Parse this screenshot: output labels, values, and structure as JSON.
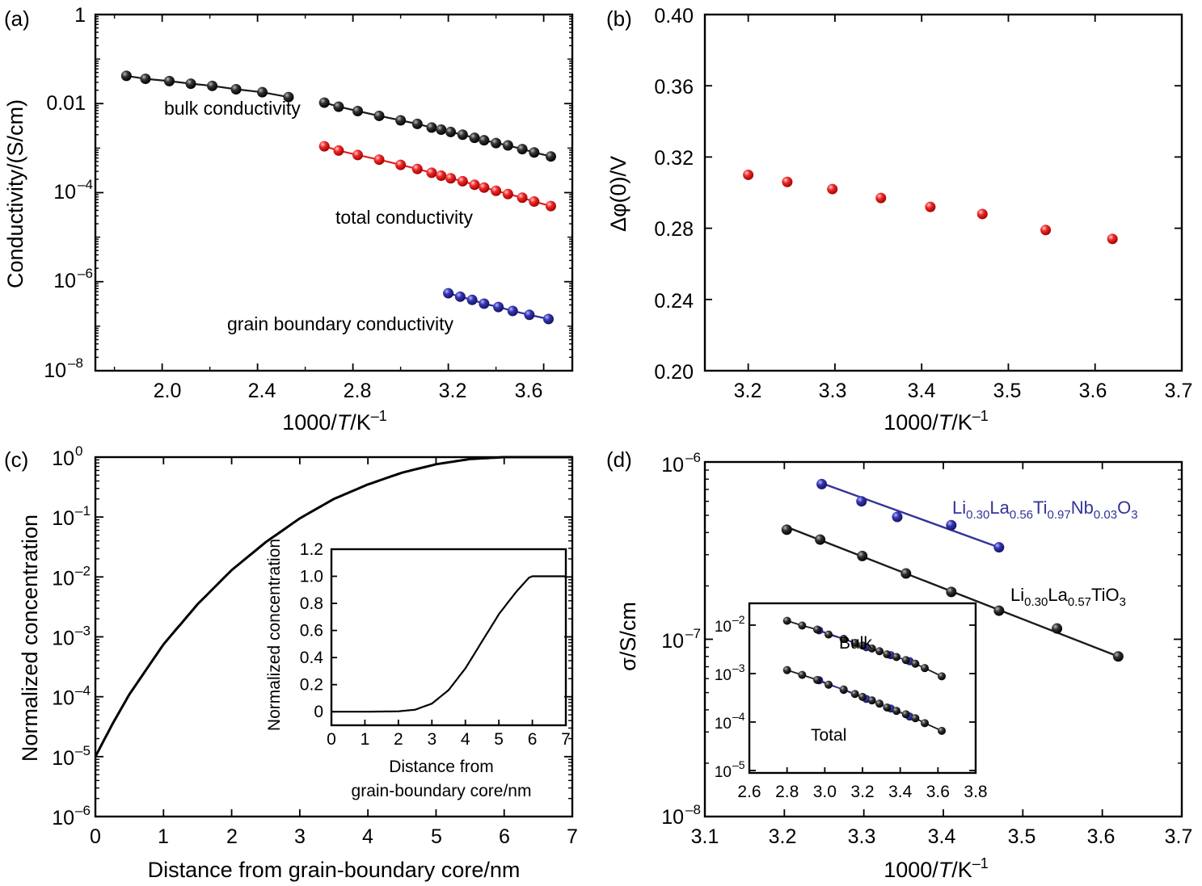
{
  "panels": [
    {
      "id": "a",
      "label": "(a)",
      "xlabel_pre": "1000/",
      "xlabel_ital": "T",
      "xlabel_post": "/K",
      "xlabel_sup": "–1",
      "ylabel": "Conductivity/(S/cm)",
      "x_ticks": [
        "2.0",
        "2.4",
        "2.8",
        "3.2",
        "3.6"
      ],
      "y_ticks": [
        {
          "base": "1",
          "exp": ""
        },
        {
          "base": "0.01",
          "exp": ""
        },
        {
          "base": "10",
          "exp": "–4"
        },
        {
          "base": "10",
          "exp": "–6"
        },
        {
          "base": "10",
          "exp": "–8"
        }
      ],
      "annotations": [
        "bulk conductivity",
        "total conductivity",
        "grain boundary conductivity"
      ]
    },
    {
      "id": "b",
      "label": "(b)",
      "xlabel_pre": "1000/",
      "xlabel_ital": "T",
      "xlabel_post": "/K",
      "xlabel_sup": "–1",
      "ylabel": "Δφ(0)/V",
      "x_ticks": [
        "3.2",
        "3.3",
        "3.4",
        "3.5",
        "3.6",
        "3.7"
      ],
      "y_ticks": [
        "0.20",
        "0.24",
        "0.28",
        "0.32",
        "0.36",
        "0.40"
      ]
    },
    {
      "id": "c",
      "label": "(c)",
      "xlabel": "Distance from grain-boundary core/nm",
      "ylabel": "Normalized concentration",
      "x_ticks": [
        "0",
        "1",
        "2",
        "3",
        "4",
        "5",
        "6",
        "7"
      ],
      "y_ticks": [
        {
          "base": "10",
          "exp": "0"
        },
        {
          "base": "10",
          "exp": "–1"
        },
        {
          "base": "10",
          "exp": "–2"
        },
        {
          "base": "10",
          "exp": "–3"
        },
        {
          "base": "10",
          "exp": "–4"
        },
        {
          "base": "10",
          "exp": "–5"
        },
        {
          "base": "10",
          "exp": "–6"
        }
      ],
      "inset": {
        "xlabel_line1": "Distance from",
        "xlabel_line2": "grain-boundary core/nm",
        "ylabel": "Normalized concentration",
        "x_ticks": [
          "0",
          "1",
          "2",
          "3",
          "4",
          "5",
          "6",
          "7"
        ],
        "y_ticks": [
          "0",
          "0.2",
          "0.4",
          "0.6",
          "0.8",
          "1.0",
          "1.2"
        ]
      }
    },
    {
      "id": "d",
      "label": "(d)",
      "xlabel_pre": "1000/",
      "xlabel_ital": "T",
      "xlabel_post": "/K",
      "xlabel_sup": "–1",
      "ylabel": "σ/S/cm",
      "x_ticks": [
        "3.1",
        "3.2",
        "3.3",
        "3.4",
        "3.5",
        "3.6",
        "3.7"
      ],
      "y_ticks": [
        {
          "base": "10",
          "exp": "–6"
        },
        {
          "base": "10",
          "exp": "–7"
        },
        {
          "base": "10",
          "exp": "–8"
        }
      ],
      "inset": {
        "x_ticks": [
          "2.6",
          "2.8",
          "3.0",
          "3.2",
          "3.4",
          "3.6",
          "3.8"
        ],
        "y_ticks": [
          {
            "base": "10",
            "exp": "–2"
          },
          {
            "base": "10",
            "exp": "–3"
          },
          {
            "base": "10",
            "exp": "–4"
          },
          {
            "base": "10",
            "exp": "–5"
          }
        ],
        "annotations": [
          "Bulk",
          "Total"
        ]
      }
    }
  ],
  "legend_d": {
    "nb": [
      {
        "t": "Li",
        "s": "0.30"
      },
      {
        "t": "La",
        "s": "0.56"
      },
      {
        "t": "Ti",
        "s": "0.97"
      },
      {
        "t": "Nb",
        "s": "0.03"
      },
      {
        "t": "O",
        "s": "3"
      }
    ],
    "ti": [
      {
        "t": "Li",
        "s": "0.30"
      },
      {
        "t": "La",
        "s": "0.57"
      },
      {
        "t": "TiO",
        "s": "3"
      }
    ]
  },
  "chart_data": [
    {
      "panel": "a",
      "type": "line",
      "xlim": [
        1.72,
        3.72
      ],
      "ylim_log10": [
        -8,
        0
      ],
      "yscale": "log",
      "colors": {
        "bulk": "#1a1a1a",
        "total": "#e02020",
        "grain": "#2a2a9a"
      },
      "series": [
        {
          "name": "bulk conductivity",
          "segment": 1,
          "x": [
            1.85,
            1.93,
            2.03,
            2.12,
            2.21,
            2.31,
            2.42,
            2.53
          ],
          "y": [
            0.042,
            0.036,
            0.032,
            0.028,
            0.025,
            0.021,
            0.018,
            0.014
          ]
        },
        {
          "name": "bulk conductivity",
          "segment": 2,
          "x": [
            2.68,
            2.74,
            2.82,
            2.91,
            3.0,
            3.07,
            3.13,
            3.17,
            3.21,
            3.26,
            3.31,
            3.35,
            3.4,
            3.45,
            3.51,
            3.56,
            3.63
          ],
          "y": [
            0.0105,
            0.0085,
            0.0068,
            0.0053,
            0.0042,
            0.0035,
            0.0029,
            0.0026,
            0.0023,
            0.002,
            0.0017,
            0.0015,
            0.0013,
            0.00115,
            0.00095,
            0.0008,
            0.00065
          ]
        },
        {
          "name": "total conductivity",
          "x": [
            2.68,
            2.74,
            2.82,
            2.91,
            3.0,
            3.07,
            3.13,
            3.17,
            3.21,
            3.26,
            3.31,
            3.35,
            3.4,
            3.45,
            3.51,
            3.56,
            3.63
          ],
          "y": [
            0.0011,
            0.00088,
            0.0007,
            0.00055,
            0.00042,
            0.00034,
            0.00028,
            0.00024,
            0.00021,
            0.00018,
            0.00015,
            0.00013,
            0.00011,
            9.3e-05,
            7.7e-05,
            6.3e-05,
            5e-05
          ]
        },
        {
          "name": "grain boundary conductivity",
          "x": [
            3.2,
            3.25,
            3.3,
            3.35,
            3.41,
            3.47,
            3.54,
            3.62
          ],
          "y": [
            5.5e-07,
            4.6e-07,
            3.9e-07,
            3.2e-07,
            2.7e-07,
            2.2e-07,
            1.8e-07,
            1.45e-07
          ]
        }
      ]
    },
    {
      "panel": "b",
      "type": "scatter",
      "xlim": [
        3.15,
        3.7
      ],
      "ylim": [
        0.2,
        0.4
      ],
      "color": "#e02020",
      "series": [
        {
          "x": [
            3.2,
            3.245,
            3.297,
            3.353,
            3.41,
            3.47,
            3.543,
            3.62
          ],
          "y": [
            0.31,
            0.306,
            0.302,
            0.297,
            0.292,
            0.288,
            0.279,
            0.274
          ]
        }
      ]
    },
    {
      "panel": "c",
      "type": "line",
      "xlim": [
        0,
        7
      ],
      "ylim_log10": [
        -6,
        0
      ],
      "yscale": "log",
      "series": [
        {
          "x": [
            0,
            0.25,
            0.5,
            1.0,
            1.5,
            2.0,
            2.5,
            3.0,
            3.5,
            4.0,
            4.5,
            5.0,
            5.5,
            6.0,
            7.0
          ],
          "y": [
            1e-05,
            3.5e-05,
            0.00011,
            0.00075,
            0.0035,
            0.013,
            0.038,
            0.095,
            0.2,
            0.35,
            0.55,
            0.76,
            0.93,
            1.0,
            1.0
          ]
        }
      ],
      "inset": {
        "type": "line",
        "xlim": [
          0,
          7
        ],
        "ylim": [
          -0.1,
          1.2
        ],
        "series": [
          {
            "x": [
              0,
              1,
              2,
              2.5,
              3.0,
              3.5,
              4.0,
              4.5,
              5.0,
              5.5,
              5.9,
              6.0,
              7.0
            ],
            "y": [
              0,
              0,
              0.003,
              0.015,
              0.06,
              0.16,
              0.32,
              0.52,
              0.72,
              0.88,
              0.99,
              1.0,
              1.0
            ]
          }
        ]
      }
    },
    {
      "panel": "d",
      "type": "line",
      "xlim": [
        3.1,
        3.7
      ],
      "ylim_log10": [
        -8,
        -6
      ],
      "yscale": "log",
      "colors": {
        "nb": "#33339a",
        "ti": "#1a1a1a"
      },
      "series": [
        {
          "name": "Li0.30La0.56Ti0.97Nb0.03O3",
          "x": [
            3.247,
            3.297,
            3.342,
            3.41,
            3.47
          ],
          "y": [
            7.5e-07,
            6e-07,
            4.9e-07,
            4.4e-07,
            3.3e-07
          ],
          "fit_x": [
            3.247,
            3.47
          ],
          "fit_y": [
            7.6e-07,
            3.3e-07
          ]
        },
        {
          "name": "Li0.30La0.57TiO3",
          "x": [
            3.203,
            3.245,
            3.298,
            3.353,
            3.41,
            3.47,
            3.543,
            3.62
          ],
          "y": [
            4.15e-07,
            3.65e-07,
            2.95e-07,
            2.35e-07,
            1.85e-07,
            1.45e-07,
            1.15e-07,
            8e-08
          ],
          "fit_x": [
            3.203,
            3.62
          ],
          "fit_y": [
            4.3e-07,
            8e-08
          ]
        }
      ],
      "inset": {
        "xlim": [
          2.6,
          3.8
        ],
        "ylim_log10": [
          -5.05,
          -1.55
        ],
        "yscale": "log",
        "series": [
          {
            "name": "Bulk",
            "color": "#1a1a1a",
            "x": [
              2.8,
              2.88,
              2.96,
              3.02,
              3.1,
              3.16,
              3.2,
              3.25,
              3.29,
              3.33,
              3.38,
              3.43,
              3.48,
              3.53,
              3.62
            ],
            "y": [
              0.0123,
              0.0098,
              0.0081,
              0.0064,
              0.0052,
              0.0043,
              0.0038,
              0.0033,
              0.0029,
              0.0025,
              0.0022,
              0.0019,
              0.0016,
              0.0013,
              0.00088
            ]
          },
          {
            "name": "Bulk",
            "color": "#33339a",
            "x": [
              2.97,
              3.1,
              3.22,
              3.35,
              3.45
            ],
            "y": [
              0.0078,
              0.0052,
              0.0035,
              0.0024,
              0.0018
            ]
          },
          {
            "name": "Total",
            "color": "#1a1a1a",
            "x": [
              2.8,
              2.88,
              2.96,
              3.02,
              3.1,
              3.16,
              3.2,
              3.25,
              3.29,
              3.33,
              3.38,
              3.43,
              3.48,
              3.53,
              3.62
            ],
            "y": [
              0.00118,
              0.00094,
              0.00074,
              0.00059,
              0.00047,
              0.00038,
              0.00033,
              0.00028,
              0.00024,
              0.0002,
              0.00017,
              0.000145,
              0.00012,
              9.5e-05,
              6.6e-05
            ]
          },
          {
            "name": "Total",
            "color": "#33339a",
            "x": [
              2.97,
              3.1,
              3.22,
              3.35,
              3.45
            ],
            "y": [
              0.00073,
              0.00046,
              0.0003,
              0.00019,
              0.00013
            ]
          }
        ]
      }
    }
  ]
}
